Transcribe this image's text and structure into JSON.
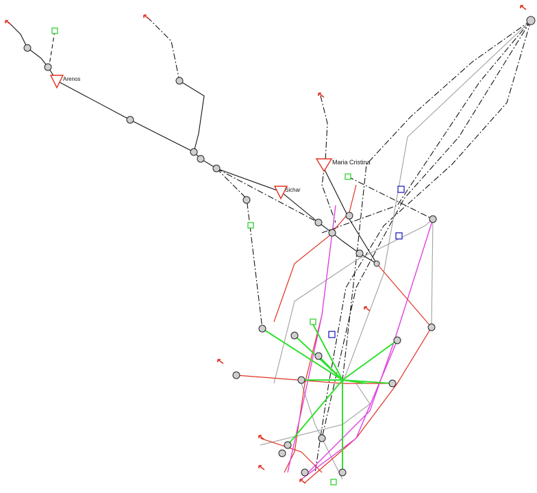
{
  "nodes": [
    {
      "label": "Arenos"
    },
    {
      "label": "Maria Cristina"
    },
    {
      "label": "Sichar"
    }
  ]
}
